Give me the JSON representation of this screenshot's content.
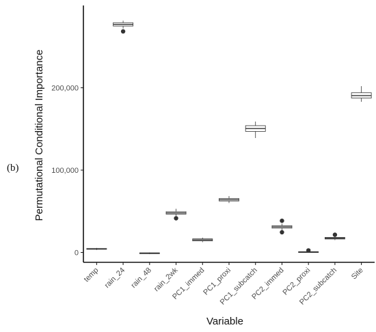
{
  "panel_label": "(b)",
  "chart_data": {
    "type": "box",
    "title": "",
    "xlabel": "Variable",
    "ylabel": "Permutational Conditional Importance",
    "ylim": [
      -12000,
      300000
    ],
    "yticks": [
      0,
      100000,
      200000
    ],
    "ytick_labels": [
      "0",
      "100,000",
      "200,000"
    ],
    "grid": false,
    "categories": [
      "temp",
      "rain_24",
      "rain_48",
      "rain_2wk",
      "PC1_immed",
      "PC1_proxi",
      "PC1_subcatch",
      "PC2_immed",
      "PC2_proxi",
      "PC2_subcatch",
      "Site"
    ],
    "boxes": [
      {
        "whisker_low": 3000,
        "q1": 3800,
        "median": 4300,
        "q3": 4800,
        "whisker_high": 5500,
        "outliers": []
      },
      {
        "whisker_low": 272000,
        "q1": 275000,
        "median": 277000,
        "q3": 279000,
        "whisker_high": 281500,
        "outliers": [
          268500
        ]
      },
      {
        "whisker_low": -2000,
        "q1": -1300,
        "median": -900,
        "q3": -500,
        "whisker_high": 0,
        "outliers": []
      },
      {
        "whisker_low": 44000,
        "q1": 46500,
        "median": 48000,
        "q3": 49500,
        "whisker_high": 53000,
        "outliers": [
          41500
        ]
      },
      {
        "whisker_low": 12500,
        "q1": 14000,
        "median": 15200,
        "q3": 16500,
        "whisker_high": 18000,
        "outliers": []
      },
      {
        "whisker_low": 60000,
        "q1": 62500,
        "median": 64000,
        "q3": 65500,
        "whisker_high": 68500,
        "outliers": []
      },
      {
        "whisker_low": 139000,
        "q1": 147000,
        "median": 150500,
        "q3": 154000,
        "whisker_high": 159000,
        "outliers": []
      },
      {
        "whisker_low": 27000,
        "q1": 29500,
        "median": 31000,
        "q3": 32500,
        "whisker_high": 35000,
        "outliers": [
          38500,
          24500
        ]
      },
      {
        "whisker_low": 0,
        "q1": 300,
        "median": 600,
        "q3": 900,
        "whisker_high": 1500,
        "outliers": [
          2500
        ]
      },
      {
        "whisker_low": 15000,
        "q1": 16300,
        "median": 17300,
        "q3": 18300,
        "whisker_high": 19500,
        "outliers": [
          21500
        ]
      },
      {
        "whisker_low": 183000,
        "q1": 187500,
        "median": 190500,
        "q3": 194000,
        "whisker_high": 202000,
        "outliers": []
      }
    ],
    "colors": {
      "box_fill": "#ffffff",
      "box_stroke": "#333333",
      "outlier": "#333333",
      "axis": "#111111"
    }
  }
}
